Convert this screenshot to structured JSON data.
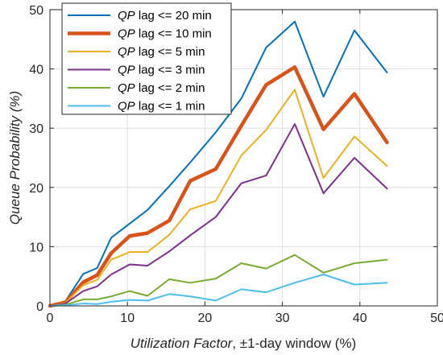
{
  "chart_data": {
    "type": "line",
    "title": "",
    "xlabel": {
      "italic": "Utilization Factor",
      "rest": ", ±1-day window (%)"
    },
    "ylabel": "Queue Probability (%)",
    "xlim": [
      0,
      50
    ],
    "ylim": [
      0,
      50
    ],
    "xticks": [
      "0",
      "10",
      "20",
      "30",
      "40",
      "50"
    ],
    "yticks": [
      "0",
      "10",
      "20",
      "30",
      "40",
      "50"
    ],
    "grid": true,
    "legend_position": "top-left",
    "x": [
      0,
      2,
      4.3,
      6.1,
      7.9,
      10.3,
      12.6,
      15.4,
      18.1,
      21.4,
      24.7,
      27.9,
      31.6,
      35.3,
      39.3,
      43.5
    ],
    "series": [
      {
        "name_italic": "QP",
        "name_rest": " lag <= 20 min",
        "color": "#0072BD",
        "width": 2,
        "values": [
          0,
          0.8,
          5.4,
          6.4,
          11.5,
          13.9,
          16.2,
          20.2,
          24.2,
          29.3,
          35.0,
          43.6,
          48.0,
          35.3,
          46.5,
          39.4
        ]
      },
      {
        "name_italic": "QP",
        "name_rest": " lag <= 10 min",
        "color": "#D95319",
        "width": 4.5,
        "values": [
          0,
          0.6,
          4.0,
          5.2,
          8.9,
          11.8,
          12.3,
          14.4,
          21.1,
          23.1,
          30.4,
          37.3,
          40.3,
          29.8,
          35.8,
          27.6
        ]
      },
      {
        "name_italic": "QP",
        "name_rest": " lag <= 5 min",
        "color": "#EDB120",
        "width": 2,
        "values": [
          0,
          0.5,
          3.5,
          4.4,
          7.8,
          9.1,
          9.1,
          12.0,
          16.3,
          17.7,
          25.4,
          29.7,
          36.5,
          21.6,
          28.6,
          23.6
        ]
      },
      {
        "name_italic": "QP",
        "name_rest": " lag <= 3 min",
        "color": "#7E2F8E",
        "width": 2,
        "values": [
          0,
          0.4,
          2.5,
          3.3,
          5.3,
          7.0,
          6.8,
          9.2,
          11.9,
          15.0,
          20.7,
          22.0,
          30.7,
          19.0,
          25.0,
          19.8
        ]
      },
      {
        "name_italic": "QP",
        "name_rest": " lag <= 2 min",
        "color": "#77AC30",
        "width": 2,
        "values": [
          0,
          0.2,
          1.1,
          1.1,
          1.6,
          2.5,
          1.7,
          4.5,
          3.9,
          4.6,
          7.2,
          6.3,
          8.6,
          5.6,
          7.2,
          7.8
        ]
      },
      {
        "name_italic": "QP",
        "name_rest": " lag <= 1 min",
        "color": "#4DBEEE",
        "width": 2,
        "values": [
          0,
          0.1,
          0.4,
          0.3,
          0.7,
          1.0,
          0.9,
          2.0,
          1.6,
          0.9,
          2.8,
          2.3,
          3.9,
          5.3,
          3.6,
          3.9
        ]
      }
    ]
  }
}
